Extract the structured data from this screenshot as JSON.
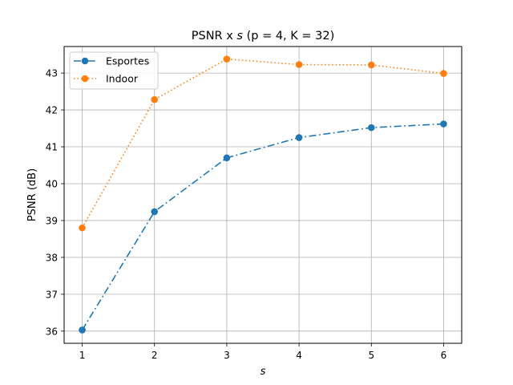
{
  "chart_data": {
    "type": "line",
    "title": "PSNR x s (p = 4, K = 32)",
    "title_parts": {
      "prefix": "PSNR x ",
      "var": "s",
      "params": "(p = 4, K = 32)"
    },
    "xlabel": "s",
    "ylabel": "PSNR (dB)",
    "x": [
      1,
      2,
      3,
      4,
      5,
      6
    ],
    "x_ticks": [
      "1",
      "2",
      "3",
      "4",
      "5",
      "6"
    ],
    "y_ticks": [
      "36",
      "37",
      "38",
      "39",
      "40",
      "41",
      "42",
      "43"
    ],
    "xlim": [
      0.75,
      6.25
    ],
    "ylim": [
      35.67,
      43.72
    ],
    "grid": true,
    "legend_position": "top-left",
    "series": [
      {
        "name": "Esportes",
        "values": [
          36.03,
          39.24,
          40.7,
          41.25,
          41.52,
          41.62
        ],
        "color": "#1f77b4",
        "linestyle": "dashdot"
      },
      {
        "name": "Indoor",
        "values": [
          38.8,
          42.28,
          43.38,
          43.23,
          43.22,
          42.99
        ],
        "color": "#ff7f0e",
        "linestyle": "dotted"
      }
    ]
  }
}
